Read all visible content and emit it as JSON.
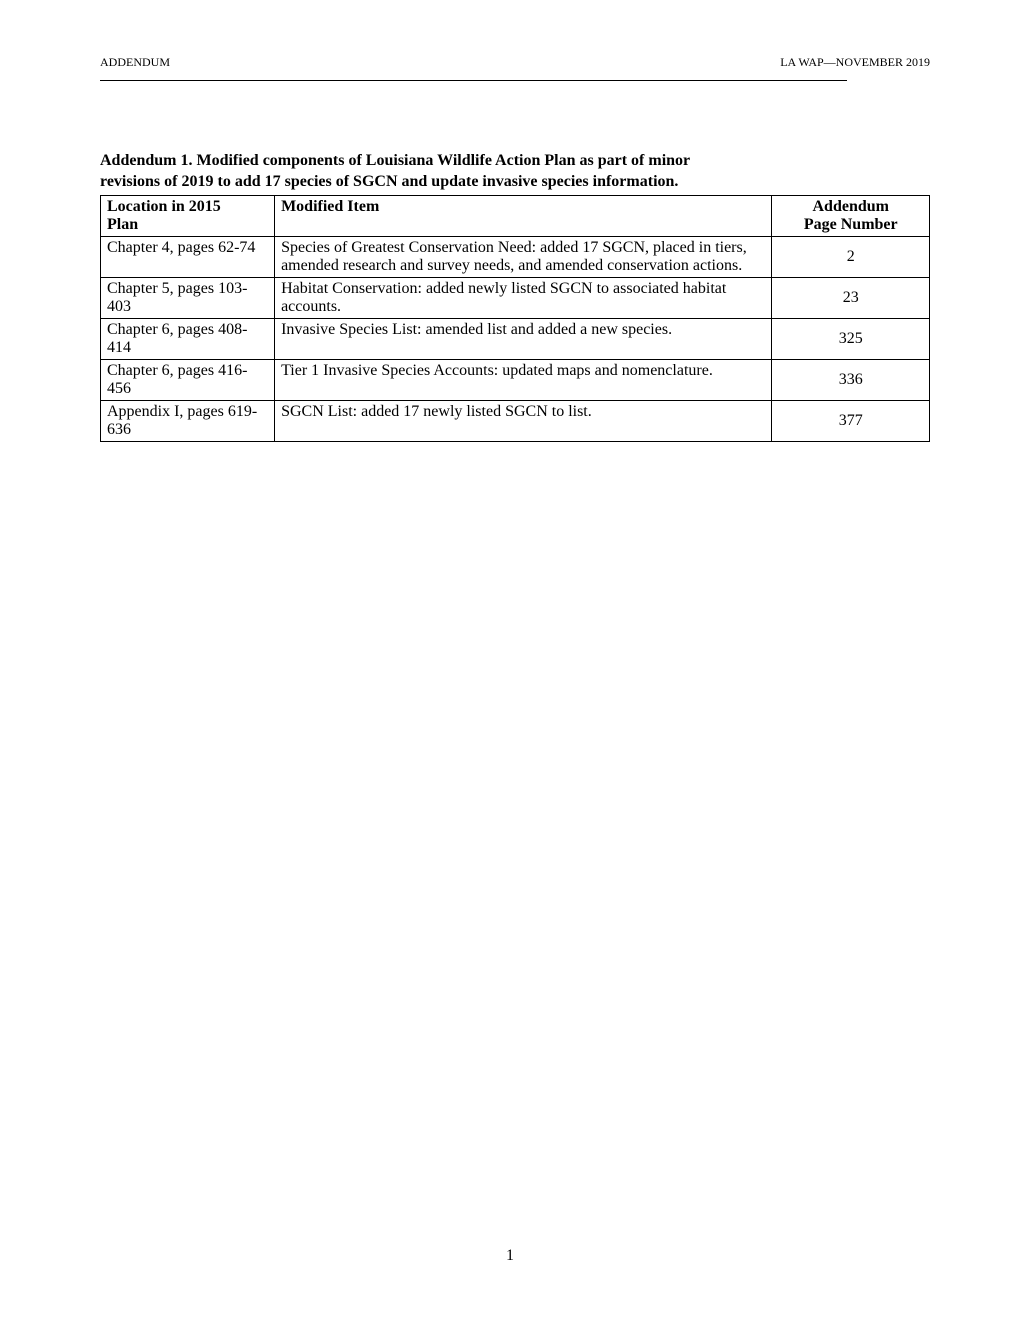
{
  "header": {
    "left": "ADDENDUM",
    "right": "LA WAP—NOVEMBER 2019"
  },
  "title": {
    "line1": "Addendum 1. Modified components of Louisiana Wildlife Action Plan as part of minor",
    "line2": "revisions of 2019 to add 17 species of SGCN and update invasive species information."
  },
  "table": {
    "columns": {
      "col1_line1": "Location in 2015",
      "col1_line2": "Plan",
      "col2": "Modified Item",
      "col3_line1": "Addendum",
      "col3_line2": "Page Number"
    },
    "rows": [
      {
        "location": "Chapter 4, pages 62-74",
        "modified": "Species of Greatest Conservation Need: added 17 SGCN, placed in tiers, amended research and survey needs, and amended conservation actions.",
        "page": "2"
      },
      {
        "location": "Chapter 5, pages 103-403",
        "modified": "Habitat Conservation: added newly listed SGCN to associated habitat accounts.",
        "page": "23"
      },
      {
        "location": "Chapter 6, pages 408-414",
        "modified": "Invasive Species List: amended list and added a new species.",
        "page": "325"
      },
      {
        "location": "Chapter 6, pages 416-456",
        "modified": "Tier 1 Invasive Species Accounts: updated maps and nomenclature.",
        "page": "336"
      },
      {
        "location": "Appendix I, pages 619-636",
        "modified": "SGCN List: added 17 newly listed SGCN to list.",
        "page": "377"
      }
    ]
  },
  "footer": {
    "page_number": "1"
  }
}
